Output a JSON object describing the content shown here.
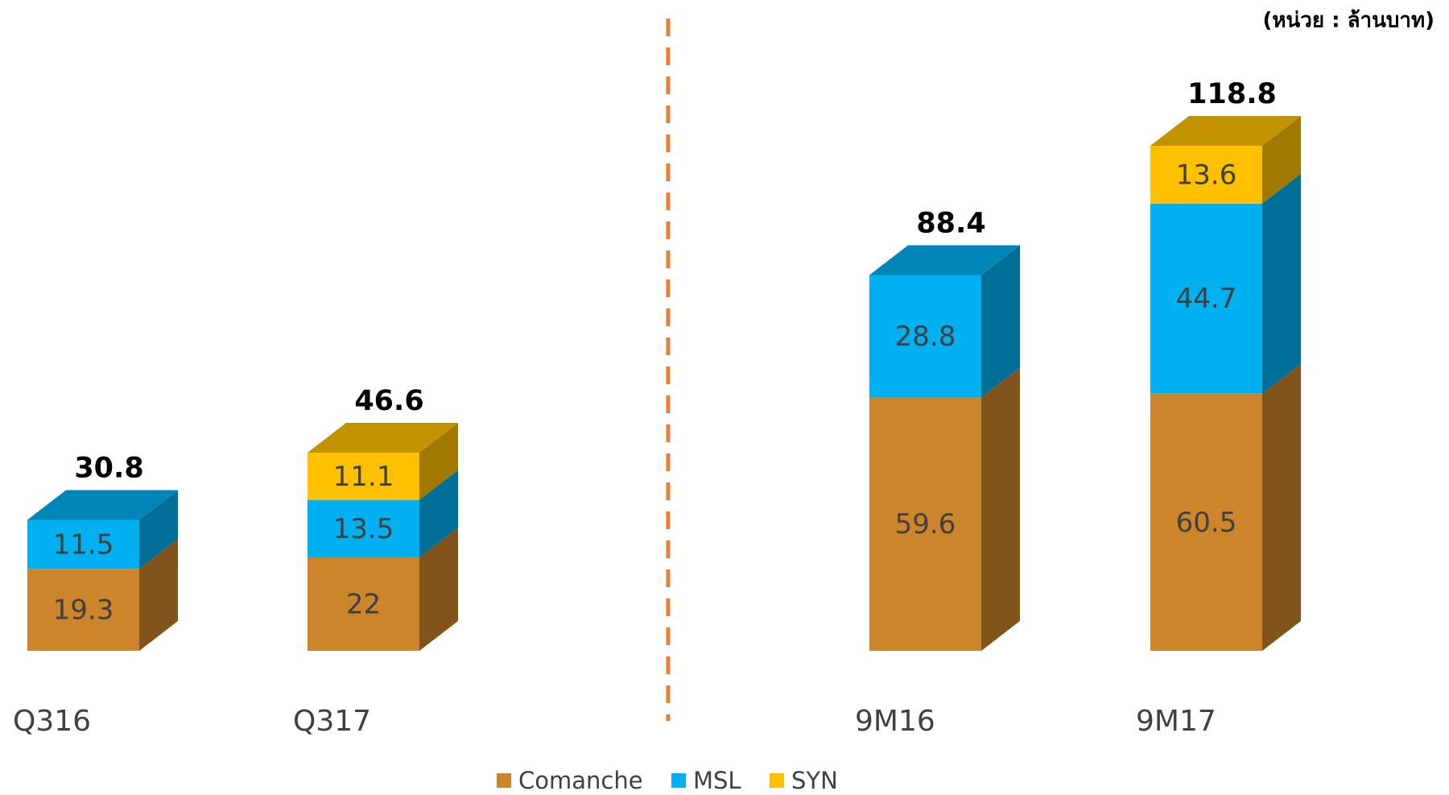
{
  "chart_data": {
    "type": "bar3d_stacked",
    "unit_note": "(หน่วย : ล้านบาท)",
    "categories": [
      "Q316",
      "Q317",
      "9M16",
      "9M17"
    ],
    "series": [
      {
        "name": "Comanche",
        "color": "#CD852C",
        "values": [
          19.3,
          22,
          59.6,
          60.5
        ]
      },
      {
        "name": "MSL",
        "color": "#00B0F0",
        "values": [
          11.5,
          13.5,
          28.8,
          44.7
        ]
      },
      {
        "name": "SYN",
        "color": "#FFC000",
        "values": [
          null,
          11.1,
          null,
          13.6
        ]
      }
    ],
    "totals": [
      30.8,
      46.6,
      88.4,
      118.8
    ],
    "divider_color": "#ED7D31"
  }
}
